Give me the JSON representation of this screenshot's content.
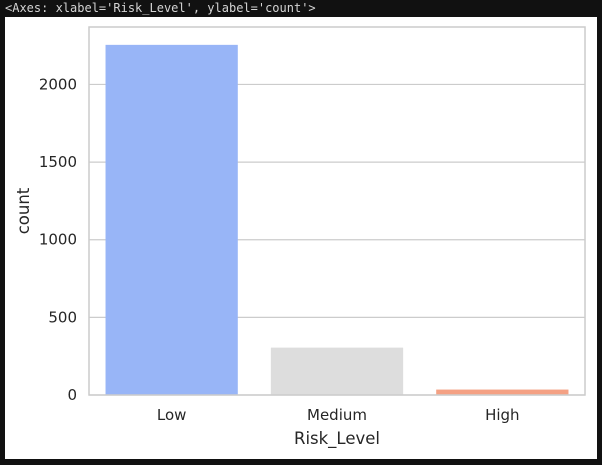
{
  "output_header": "<Axes: xlabel='Risk_Level', ylabel='count'>",
  "chart_data": {
    "type": "bar",
    "title": "",
    "xlabel": "Risk_Level",
    "ylabel": "count",
    "categories": [
      "Low",
      "Medium",
      "High"
    ],
    "values": [
      2255,
      305,
      35
    ],
    "ylim": [
      0,
      2370
    ],
    "yticks": [
      0,
      500,
      1000,
      1500,
      2000
    ],
    "grid": true,
    "colors": [
      "#98b5f7",
      "#dddddd",
      "#f4a184"
    ],
    "gridColor": "#cccccc",
    "spineColor": "#cccccc"
  }
}
